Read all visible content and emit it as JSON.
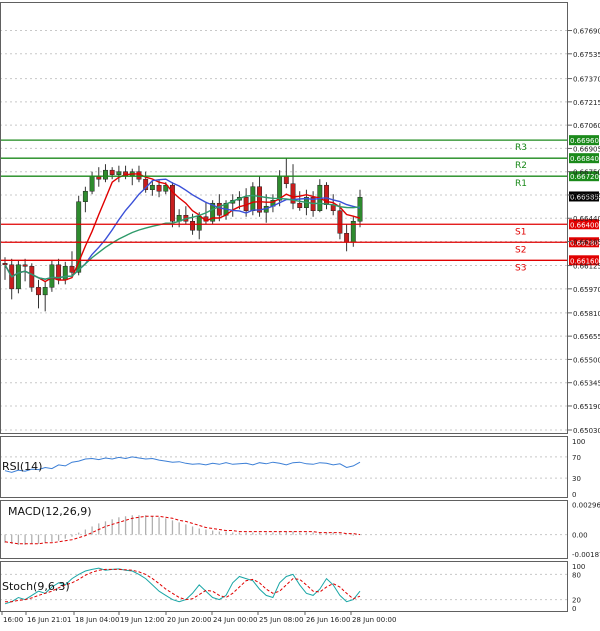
{
  "chart_data": [
    {
      "type": "candlestick",
      "panel": "price",
      "ylim": [
        0.6503,
        0.6784
      ],
      "y_ticks": [
        "0.67690",
        "0.67535",
        "0.67370",
        "0.67215",
        "0.67060",
        "0.66905",
        "0.66750",
        "0.66595",
        "0.66440",
        "0.66285",
        "0.66125",
        "0.65970",
        "0.65810",
        "0.65655",
        "0.65500",
        "0.65345",
        "0.65190",
        "0.65030"
      ],
      "x_labels": [
        "16:00",
        "16 Jun 21:01",
        "18 Jun 04:00",
        "19 Jun 12:00",
        "20 Jun 20:00",
        "24 Jun 00:00",
        "25 Jun 08:00",
        "26 Jun 16:00",
        "28 Jun 00:00"
      ],
      "current_price": "0.66585",
      "current_price_value": 0.66585,
      "levels": [
        {
          "name": "R3",
          "value": 0.6696,
          "label": "0.66960",
          "color": "#1b8a1b"
        },
        {
          "name": "R2",
          "value": 0.6684,
          "label": "0.66840",
          "color": "#1b8a1b"
        },
        {
          "name": "R1",
          "value": 0.6672,
          "label": "0.66720",
          "color": "#1b8a1b"
        },
        {
          "name": "S1",
          "value": 0.664,
          "label": "0.66400",
          "color": "#e00000"
        },
        {
          "name": "S2",
          "value": 0.6628,
          "label": "0.66280",
          "color": "#e00000"
        },
        {
          "name": "S3",
          "value": 0.6616,
          "label": "0.66160",
          "color": "#e00000"
        }
      ],
      "candles": [
        [
          0.6614,
          0.6618,
          0.6603,
          0.6613
        ],
        [
          0.6613,
          0.6617,
          0.659,
          0.6597
        ],
        [
          0.6597,
          0.6616,
          0.6594,
          0.6613
        ],
        [
          0.6613,
          0.6617,
          0.6602,
          0.6612
        ],
        [
          0.6612,
          0.6614,
          0.6595,
          0.6598
        ],
        [
          0.6598,
          0.6603,
          0.6584,
          0.6593
        ],
        [
          0.6593,
          0.6602,
          0.6582,
          0.6598
        ],
        [
          0.6598,
          0.6616,
          0.6595,
          0.6613
        ],
        [
          0.6613,
          0.6617,
          0.66,
          0.6603
        ],
        [
          0.6603,
          0.6615,
          0.66,
          0.6612
        ],
        [
          0.6612,
          0.6622,
          0.6605,
          0.6608
        ],
        [
          0.6608,
          0.6659,
          0.6606,
          0.6655
        ],
        [
          0.6655,
          0.6665,
          0.6648,
          0.6662
        ],
        [
          0.6662,
          0.6675,
          0.666,
          0.6672
        ],
        [
          0.6672,
          0.6678,
          0.6665,
          0.667
        ],
        [
          0.667,
          0.668,
          0.6668,
          0.6676
        ],
        [
          0.6676,
          0.6678,
          0.667,
          0.6673
        ],
        [
          0.6673,
          0.6679,
          0.6668,
          0.6675
        ],
        [
          0.6675,
          0.6679,
          0.667,
          0.6672
        ],
        [
          0.6672,
          0.6677,
          0.6666,
          0.6675
        ],
        [
          0.6675,
          0.6679,
          0.6668,
          0.667
        ],
        [
          0.667,
          0.6675,
          0.6661,
          0.6663
        ],
        [
          0.6663,
          0.6669,
          0.6659,
          0.6666
        ],
        [
          0.6666,
          0.667,
          0.6658,
          0.6662
        ],
        [
          0.6662,
          0.6668,
          0.666,
          0.6666
        ],
        [
          0.6666,
          0.6668,
          0.6638,
          0.6642
        ],
        [
          0.6642,
          0.665,
          0.6638,
          0.6646
        ],
        [
          0.6646,
          0.6652,
          0.664,
          0.6642
        ],
        [
          0.6642,
          0.6647,
          0.6633,
          0.6636
        ],
        [
          0.6636,
          0.6648,
          0.663,
          0.6645
        ],
        [
          0.6645,
          0.6655,
          0.664,
          0.6642
        ],
        [
          0.6642,
          0.6656,
          0.664,
          0.6654
        ],
        [
          0.6654,
          0.666,
          0.6642,
          0.6646
        ],
        [
          0.6646,
          0.6656,
          0.6643,
          0.6654
        ],
        [
          0.6654,
          0.666,
          0.6645,
          0.6656
        ],
        [
          0.6656,
          0.6662,
          0.665,
          0.6658
        ],
        [
          0.6658,
          0.6664,
          0.6645,
          0.6649
        ],
        [
          0.6649,
          0.6668,
          0.6646,
          0.6665
        ],
        [
          0.6665,
          0.6672,
          0.6645,
          0.6648
        ],
        [
          0.6648,
          0.666,
          0.6641,
          0.6652
        ],
        [
          0.6652,
          0.666,
          0.6648,
          0.6656
        ],
        [
          0.6656,
          0.6676,
          0.6652,
          0.6672
        ],
        [
          0.6672,
          0.6684,
          0.6664,
          0.6667
        ],
        [
          0.6667,
          0.668,
          0.665,
          0.6654
        ],
        [
          0.6654,
          0.6662,
          0.6649,
          0.6651
        ],
        [
          0.6651,
          0.6663,
          0.6646,
          0.6658
        ],
        [
          0.6658,
          0.6662,
          0.6645,
          0.6649
        ],
        [
          0.6649,
          0.667,
          0.6648,
          0.6666
        ],
        [
          0.6666,
          0.6668,
          0.665,
          0.6653
        ],
        [
          0.6653,
          0.666,
          0.6646,
          0.6649
        ],
        [
          0.6649,
          0.6654,
          0.663,
          0.6634
        ],
        [
          0.6634,
          0.664,
          0.6622,
          0.6628
        ],
        [
          0.6628,
          0.6645,
          0.6625,
          0.6642
        ],
        [
          0.6642,
          0.6663,
          0.6638,
          0.6658
        ]
      ]
    },
    {
      "type": "line",
      "panel": "rsi",
      "title": "RSI(14)",
      "y_ticks": [
        "100",
        "70",
        "30",
        "0"
      ],
      "ylim": [
        0,
        100
      ],
      "series": [
        {
          "color": "#3c7fd6",
          "values": [
            44,
            41,
            45,
            43,
            47,
            46,
            50,
            48,
            55,
            53,
            60,
            62,
            66,
            67,
            65,
            68,
            66,
            69,
            67,
            70,
            68,
            66,
            67,
            64,
            62,
            60,
            61,
            58,
            56,
            57,
            55,
            58,
            56,
            59,
            56,
            57,
            58,
            55,
            59,
            57,
            60,
            58,
            55,
            59,
            60,
            57,
            56,
            59,
            58,
            55,
            57,
            50,
            53,
            60
          ]
        }
      ]
    },
    {
      "type": "bar",
      "panel": "macd",
      "title": "MACD(12,26,9)",
      "y_ticks": [
        "0.002960",
        "0.00",
        "-0.001876"
      ],
      "ylim": [
        -0.0019,
        0.0031
      ],
      "histogram": [
        -0.0008,
        -0.0009,
        -0.001,
        -0.001,
        -0.0009,
        -0.0009,
        -0.0008,
        -0.0007,
        -0.0006,
        -0.0004,
        -0.0002,
        0.0002,
        0.0005,
        0.0008,
        0.0011,
        0.0013,
        0.0015,
        0.0017,
        0.0018,
        0.0019,
        0.0019,
        0.0019,
        0.0018,
        0.0017,
        0.0016,
        0.0014,
        0.0012,
        0.001,
        0.0008,
        0.0006,
        0.0005,
        0.0004,
        0.0003,
        0.0003,
        0.0002,
        0.0002,
        0.0002,
        0.0002,
        0.0002,
        0.0002,
        0.0002,
        0.0003,
        0.0003,
        0.0003,
        0.0002,
        0.0002,
        0.0002,
        0.0002,
        0.0002,
        0.0002,
        0.0001,
        0.0,
        -0.0001,
        0.0
      ],
      "signal": [
        -0.0007,
        -0.0008,
        -0.0009,
        -0.0009,
        -0.0009,
        -0.0009,
        -0.0008,
        -0.0008,
        -0.0007,
        -0.0006,
        -0.0005,
        -0.0003,
        -0.0001,
        0.0002,
        0.0005,
        0.0008,
        0.001,
        0.0012,
        0.0014,
        0.0016,
        0.0017,
        0.0018,
        0.0018,
        0.0018,
        0.0017,
        0.0016,
        0.0014,
        0.0013,
        0.0011,
        0.0009,
        0.0007,
        0.0006,
        0.0005,
        0.0004,
        0.0004,
        0.0003,
        0.0003,
        0.0003,
        0.0003,
        0.0003,
        0.0003,
        0.0003,
        0.0003,
        0.0003,
        0.0003,
        0.0003,
        0.0003,
        0.0002,
        0.0002,
        0.0002,
        0.0002,
        0.0001,
        0.0001,
        0.0
      ],
      "signal_color": "#e00000",
      "histogram_color": "#b0b0b0"
    },
    {
      "type": "line",
      "panel": "stochastic",
      "title": "Stoch(9,6,3)",
      "y_ticks": [
        "100",
        "80",
        "20",
        "0"
      ],
      "ylim": [
        0,
        100
      ],
      "series": [
        {
          "color": "#1aa6a6",
          "values": [
            10,
            15,
            25,
            20,
            30,
            40,
            35,
            50,
            60,
            55,
            70,
            80,
            88,
            92,
            95,
            90,
            92,
            93,
            90,
            88,
            80,
            70,
            55,
            40,
            30,
            20,
            15,
            20,
            35,
            55,
            40,
            25,
            20,
            30,
            60,
            75,
            70,
            65,
            45,
            30,
            25,
            60,
            75,
            80,
            55,
            35,
            30,
            45,
            70,
            55,
            30,
            15,
            20,
            40
          ]
        },
        {
          "color": "#e00000",
          "values": [
            15,
            15,
            18,
            20,
            24,
            30,
            35,
            40,
            48,
            55,
            60,
            68,
            78,
            85,
            90,
            92,
            92,
            92,
            91,
            90,
            86,
            80,
            70,
            58,
            45,
            35,
            25,
            20,
            22,
            32,
            42,
            40,
            30,
            25,
            35,
            50,
            65,
            68,
            60,
            45,
            35,
            40,
            55,
            70,
            68,
            55,
            40,
            38,
            50,
            58,
            50,
            35,
            22,
            28
          ]
        }
      ]
    }
  ]
}
